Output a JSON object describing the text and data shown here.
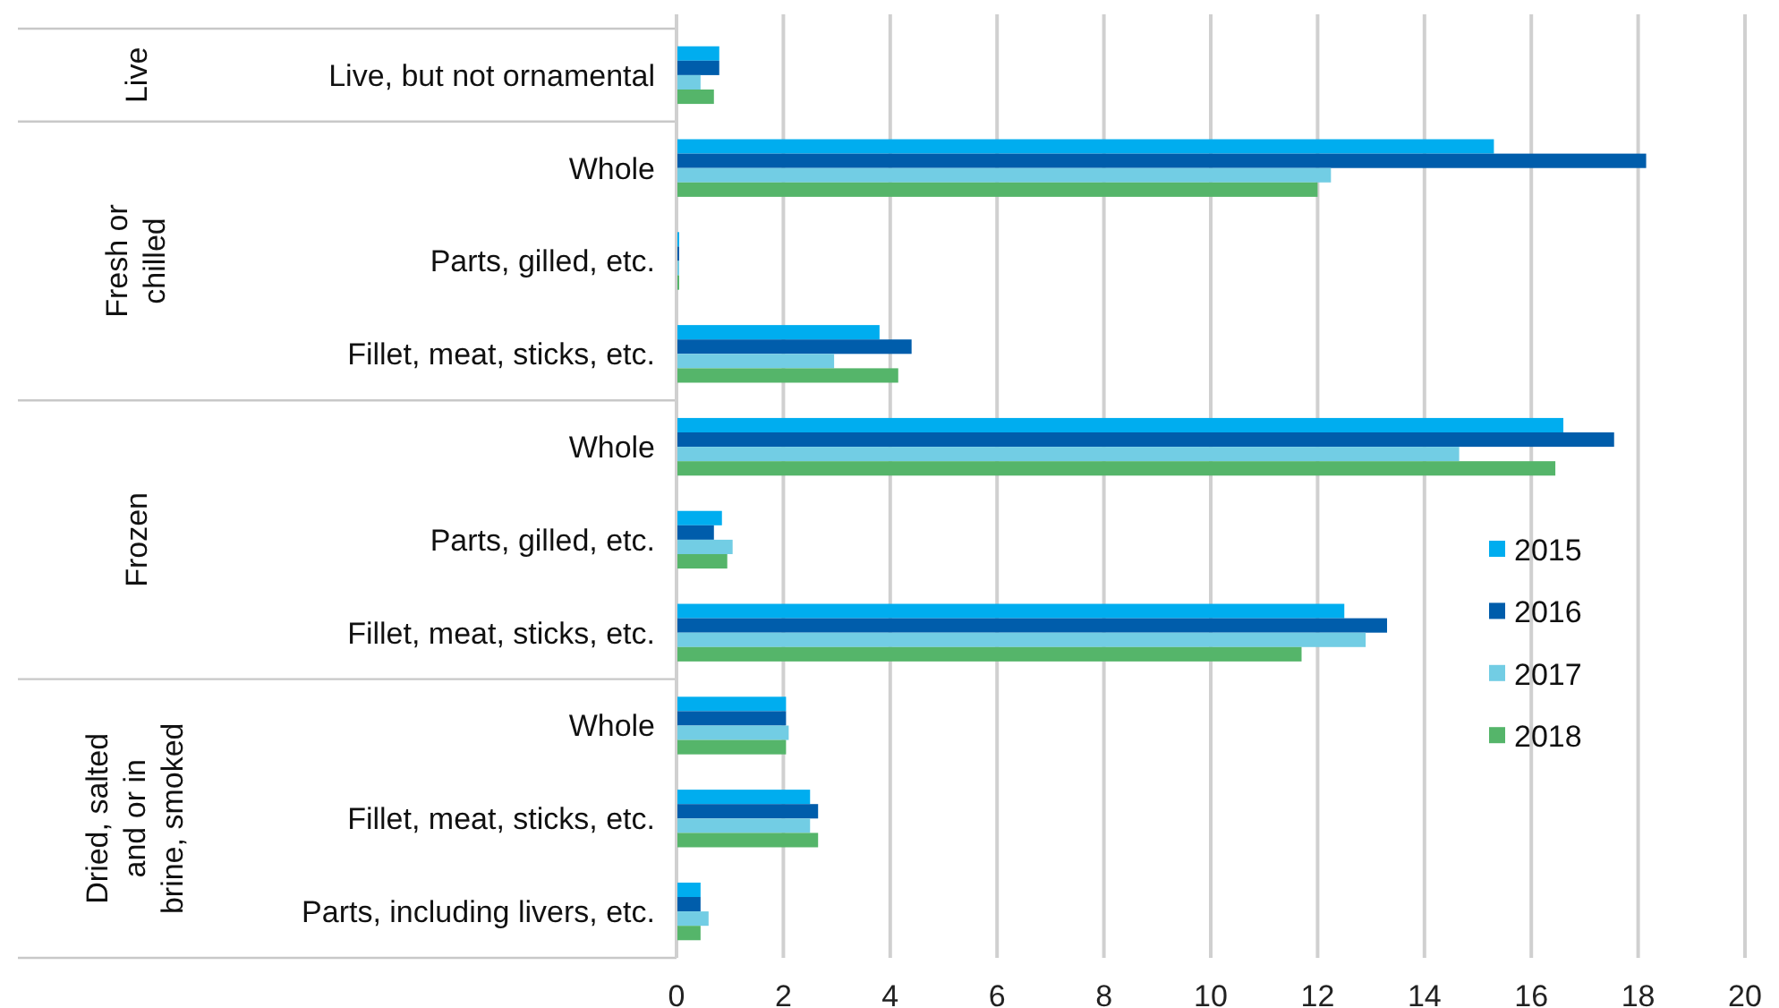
{
  "chart_data": {
    "type": "bar",
    "orientation": "horizontal",
    "categories": [
      "Live, but not ornamental",
      "Whole",
      "Parts, gilled, etc.",
      "Fillet, meat, sticks, etc.",
      "Whole",
      "Parts, gilled, etc.",
      "Fillet, meat, sticks, etc.",
      "Whole",
      "Fillet, meat, sticks, etc.",
      "Parts, including livers, etc."
    ],
    "annotations": [
      "Live",
      "Fresh or chilled",
      "Frozen",
      "Dried, salted and or in brine, smoked"
    ],
    "series": [
      {
        "name": "2015",
        "color": "#00adef",
        "values": [
          0.8,
          15.3,
          0.05,
          3.8,
          16.6,
          0.85,
          12.5,
          2.05,
          2.5,
          0.45
        ]
      },
      {
        "name": "2016",
        "color": "#005dab",
        "values": [
          0.8,
          18.15,
          0.05,
          4.4,
          17.55,
          0.7,
          13.3,
          2.05,
          2.65,
          0.45
        ]
      },
      {
        "name": "2017",
        "color": "#72cde4",
        "values": [
          0.45,
          12.25,
          0.05,
          2.95,
          14.65,
          1.05,
          12.9,
          2.1,
          2.5,
          0.6
        ]
      },
      {
        "name": "2018",
        "color": "#55b56a",
        "values": [
          0.7,
          12,
          0.05,
          4.15,
          16.45,
          0.95,
          11.7,
          2.05,
          2.65,
          0.45
        ]
      }
    ],
    "xlim": [
      0,
      20
    ],
    "xticks": [
      0,
      2,
      4,
      6,
      8,
      10,
      12,
      14,
      16,
      18,
      20
    ],
    "grid": "x",
    "legend": "right"
  }
}
